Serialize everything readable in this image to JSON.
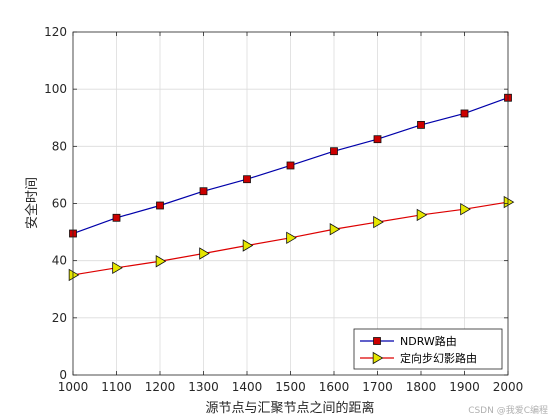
{
  "chart_data": {
    "type": "line",
    "title": "",
    "xlabel": "源节点与汇聚节点之间的距离",
    "ylabel": "安全时间",
    "x": [
      1000,
      1100,
      1200,
      1300,
      1400,
      1500,
      1600,
      1700,
      1800,
      1900,
      2000
    ],
    "xlim": [
      1000,
      2000
    ],
    "ylim": [
      0,
      120
    ],
    "xticks": [
      1000,
      1100,
      1200,
      1300,
      1400,
      1500,
      1600,
      1700,
      1800,
      1900,
      2000
    ],
    "yticks": [
      0,
      20,
      40,
      60,
      80,
      100,
      120
    ],
    "grid": true,
    "legend_position": "bottom-right",
    "series": [
      {
        "name": "NDRW路由",
        "color": "#0000aa",
        "marker": "square",
        "marker_color": "#cc0000",
        "values": [
          49.5,
          55,
          59.3,
          64.3,
          68.5,
          73.3,
          78.3,
          82.5,
          87.5,
          91.5,
          97
        ]
      },
      {
        "name": "定向步幻影路由",
        "color": "#dd0000",
        "marker": "triangle-right",
        "marker_color": "#e6e600",
        "values": [
          35,
          37.5,
          39.8,
          42.5,
          45.3,
          48,
          51,
          53.5,
          56,
          58,
          60.5
        ]
      }
    ]
  },
  "watermark": "CSDN @我爱C编程"
}
